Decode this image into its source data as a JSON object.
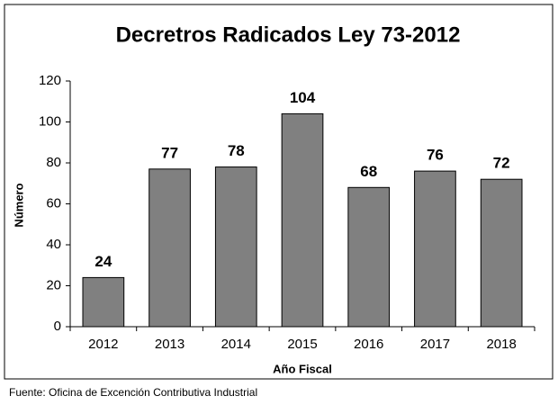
{
  "chart_data": {
    "type": "bar",
    "title": "Decretros Radicados Ley 73-2012",
    "categories": [
      "2012",
      "2013",
      "2014",
      "2015",
      "2016",
      "2017",
      "2018"
    ],
    "values": [
      24,
      77,
      78,
      104,
      68,
      76,
      72
    ],
    "color": "#808080",
    "ylim": [
      0,
      120
    ],
    "yticks": [
      0,
      20,
      40,
      60,
      80,
      100,
      120
    ],
    "grid": false,
    "xlabel": "Año Fiscal",
    "ylabel": "Número",
    "source": "Fuente: Oficina de Excención Contributiva Industrial"
  }
}
